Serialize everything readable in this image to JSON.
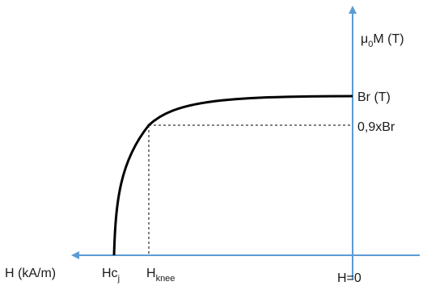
{
  "chart_data": {
    "type": "line",
    "title": "",
    "xlabel": "H (kA/m)",
    "ylabel": "μ₀M (T)",
    "x_direction": "decreasing-left",
    "x_ticks": {
      "hcj": {
        "base": "Hc",
        "sub": "j"
      },
      "hknee": {
        "base": "H",
        "sub": "knee"
      },
      "zero": "H=0"
    },
    "y_ticks": {
      "br": "Br (T)",
      "knee": "0,9xBr"
    },
    "ylabel_parts": {
      "base": "μ",
      "sub": "0",
      "rest": "M (T)"
    },
    "series": [
      {
        "values": [
          {
            "x": "Hcj",
            "y": 0
          },
          {
            "x": "Hknee",
            "y": "0,9xBr"
          },
          {
            "x": "H=0",
            "y": "Br (T)"
          }
        ]
      }
    ],
    "guides": "dashed lines from the knee point to H axis and to μ₀M axis",
    "colors": {
      "axis": "#5b9bd5",
      "curve": "#000000",
      "guide": "#000000"
    },
    "legend": "none",
    "grid": false
  }
}
